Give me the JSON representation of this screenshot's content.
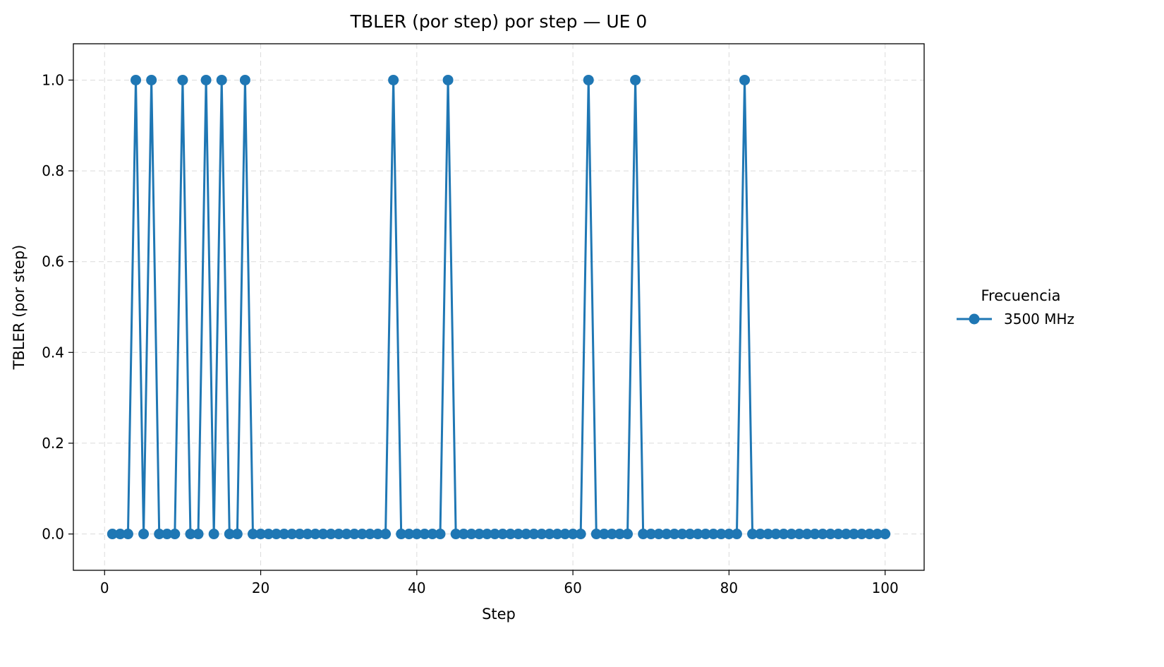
{
  "chart_data": {
    "type": "line",
    "title": "TBLER (por step) por step — UE 0",
    "xlabel": "Step",
    "ylabel": "TBLER (por step)",
    "xlim": [
      -4,
      105
    ],
    "ylim": [
      -0.08,
      1.08
    ],
    "xticks": [
      0,
      20,
      40,
      60,
      80,
      100
    ],
    "xtick_labels": [
      "0",
      "20",
      "40",
      "60",
      "80",
      "100"
    ],
    "yticks": [
      0.0,
      0.2,
      0.4,
      0.6,
      0.8,
      1.0
    ],
    "ytick_labels": [
      "0.0",
      "0.2",
      "0.4",
      "0.6",
      "0.8",
      "1.0"
    ],
    "grid": true,
    "legend": {
      "title": "Frecuencia",
      "placement": "right-outside"
    },
    "series": [
      {
        "name": "3500 MHz",
        "color": "#1f77b4",
        "marker": "circle",
        "x": [
          1,
          2,
          3,
          4,
          5,
          6,
          7,
          8,
          9,
          10,
          11,
          12,
          13,
          14,
          15,
          16,
          17,
          18,
          19,
          20,
          21,
          22,
          23,
          24,
          25,
          26,
          27,
          28,
          29,
          30,
          31,
          32,
          33,
          34,
          35,
          36,
          37,
          38,
          39,
          40,
          41,
          42,
          43,
          44,
          45,
          46,
          47,
          48,
          49,
          50,
          51,
          52,
          53,
          54,
          55,
          56,
          57,
          58,
          59,
          60,
          61,
          62,
          63,
          64,
          65,
          66,
          67,
          68,
          69,
          70,
          71,
          72,
          73,
          74,
          75,
          76,
          77,
          78,
          79,
          80,
          81,
          82,
          83,
          84,
          85,
          86,
          87,
          88,
          89,
          90,
          91,
          92,
          93,
          94,
          95,
          96,
          97,
          98,
          99,
          100
        ],
        "values": [
          0,
          0,
          0,
          1,
          0,
          1,
          0,
          0,
          0,
          1,
          0,
          0,
          1,
          0,
          1,
          0,
          0,
          1,
          0,
          0,
          0,
          0,
          0,
          0,
          0,
          0,
          0,
          0,
          0,
          0,
          0,
          0,
          0,
          0,
          0,
          0,
          1,
          0,
          0,
          0,
          0,
          0,
          0,
          1,
          0,
          0,
          0,
          0,
          0,
          0,
          0,
          0,
          0,
          0,
          0,
          0,
          0,
          0,
          0,
          0,
          0,
          1,
          0,
          0,
          0,
          0,
          0,
          1,
          0,
          0,
          0,
          0,
          0,
          0,
          0,
          0,
          0,
          0,
          0,
          0,
          0,
          1,
          0,
          0,
          0,
          0,
          0,
          0,
          0,
          0,
          0,
          0,
          0,
          0,
          0,
          0,
          0,
          0,
          0,
          0
        ]
      }
    ]
  }
}
